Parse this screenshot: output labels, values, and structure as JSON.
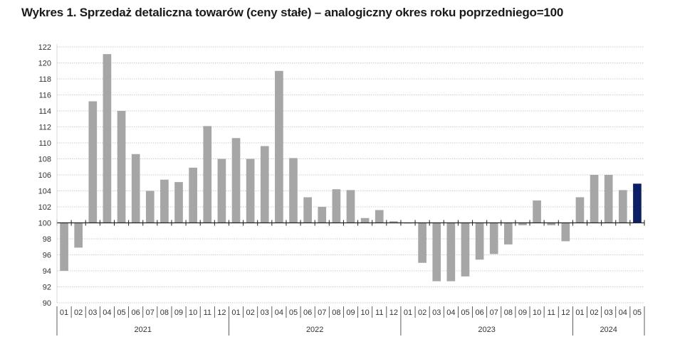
{
  "chart_data": {
    "type": "bar",
    "title": "Wykres 1. Sprzedaż detaliczna towarów (ceny stałe) – analogiczny okres roku poprzedniego=100",
    "xlabel": "",
    "ylabel": "",
    "baseline": 100,
    "ylim": [
      90,
      122
    ],
    "yticks": [
      90,
      92,
      94,
      96,
      98,
      100,
      102,
      104,
      106,
      108,
      110,
      112,
      114,
      116,
      118,
      120,
      122
    ],
    "grid": true,
    "legend": "none",
    "colors": {
      "default": "#a6a6a6",
      "highlight": "#0b1f66",
      "axis": "#333333",
      "grid": "#bdbdbd"
    },
    "highlight_index": 40,
    "categories": [
      "01",
      "02",
      "03",
      "04",
      "05",
      "06",
      "07",
      "08",
      "09",
      "10",
      "11",
      "12",
      "01",
      "02",
      "03",
      "04",
      "05",
      "06",
      "07",
      "08",
      "09",
      "10",
      "11",
      "12",
      "01",
      "02",
      "03",
      "04",
      "05",
      "06",
      "07",
      "08",
      "09",
      "10",
      "11",
      "12",
      "01",
      "02",
      "03",
      "04",
      "05"
    ],
    "years": [
      {
        "label": "2021",
        "months": 12
      },
      {
        "label": "2022",
        "months": 12
      },
      {
        "label": "2023",
        "months": 12
      },
      {
        "label": "2024",
        "months": 5
      }
    ],
    "values": [
      94.0,
      96.9,
      115.2,
      121.1,
      114.0,
      108.6,
      104.0,
      105.4,
      105.1,
      106.9,
      112.1,
      108.0,
      110.6,
      108.0,
      109.6,
      119.0,
      108.1,
      103.2,
      102.0,
      104.2,
      104.1,
      100.6,
      101.6,
      100.2,
      100.0,
      95.0,
      92.7,
      92.7,
      93.3,
      95.4,
      96.1,
      97.3,
      99.7,
      102.8,
      99.7,
      97.7,
      103.2,
      106.0,
      106.0,
      104.1,
      104.9
    ]
  }
}
